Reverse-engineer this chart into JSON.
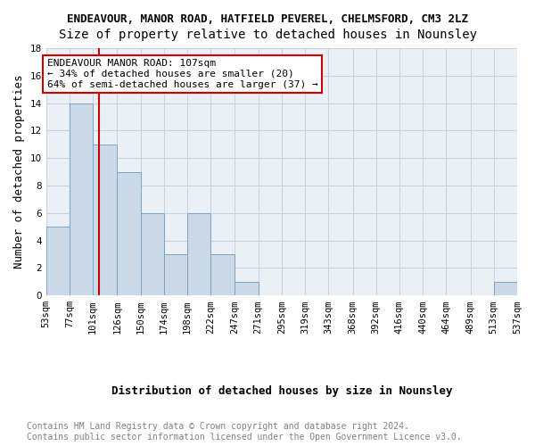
{
  "title": "ENDEAVOUR, MANOR ROAD, HATFIELD PEVEREL, CHELMSFORD, CM3 2LZ",
  "subtitle": "Size of property relative to detached houses in Nounsley",
  "xlabel": "Distribution of detached houses by size in Nounsley",
  "ylabel": "Number of detached properties",
  "bar_color": "#ccd9e8",
  "bar_edge_color": "#7ba3c8",
  "grid_color": "#c8d4e0",
  "bg_color": "#eaf0f6",
  "annotation_box_color": "#cc0000",
  "vline_color": "#cc0000",
  "bins": [
    53,
    77,
    101,
    126,
    150,
    174,
    198,
    222,
    247,
    271,
    295,
    319,
    343,
    368,
    392,
    416,
    440,
    464,
    489,
    513,
    537
  ],
  "counts": [
    5,
    14,
    11,
    9,
    6,
    3,
    6,
    3,
    1,
    0,
    0,
    0,
    0,
    0,
    0,
    0,
    0,
    0,
    0,
    1
  ],
  "property_size": 107,
  "annotation_line1": "ENDEAVOUR MANOR ROAD: 107sqm",
  "annotation_line2": "← 34% of detached houses are smaller (20)",
  "annotation_line3": "64% of semi-detached houses are larger (37) →",
  "ylim": [
    0,
    18
  ],
  "yticks": [
    0,
    2,
    4,
    6,
    8,
    10,
    12,
    14,
    16,
    18
  ],
  "tick_labels": [
    "53sqm",
    "77sqm",
    "101sqm",
    "126sqm",
    "150sqm",
    "174sqm",
    "198sqm",
    "222sqm",
    "247sqm",
    "271sqm",
    "295sqm",
    "319sqm",
    "343sqm",
    "368sqm",
    "392sqm",
    "416sqm",
    "440sqm",
    "464sqm",
    "489sqm",
    "513sqm",
    "537sqm"
  ],
  "footer_line1": "Contains HM Land Registry data © Crown copyright and database right 2024.",
  "footer_line2": "Contains public sector information licensed under the Open Government Licence v3.0.",
  "title_fontsize": 9,
  "subtitle_fontsize": 10,
  "axis_label_fontsize": 9,
  "tick_fontsize": 7.5,
  "annotation_fontsize": 8,
  "footer_fontsize": 7
}
